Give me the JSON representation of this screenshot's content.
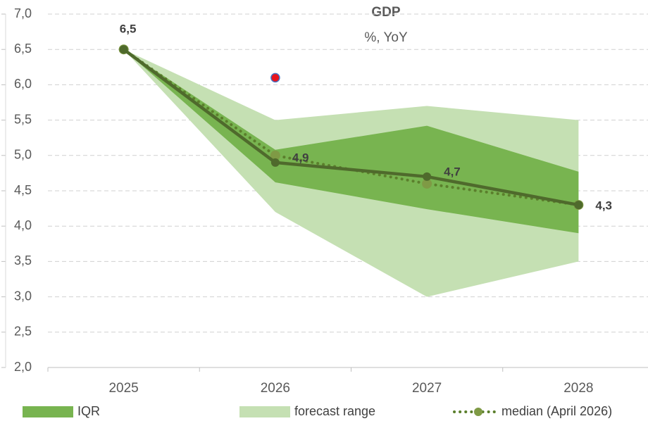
{
  "chart_data": {
    "type": "line",
    "title": "GDP",
    "subtitle": "%, YoY",
    "categories": [
      "2025",
      "2026",
      "2027",
      "2028"
    ],
    "ylim": [
      2.0,
      7.0
    ],
    "yticks": [
      {
        "value": 2.0,
        "label": "2,0"
      },
      {
        "value": 2.5,
        "label": "2,5"
      },
      {
        "value": 3.0,
        "label": "3,0"
      },
      {
        "value": 3.5,
        "label": "3,5"
      },
      {
        "value": 4.0,
        "label": "4,0"
      },
      {
        "value": 4.5,
        "label": "4,5"
      },
      {
        "value": 5.0,
        "label": "5,0"
      },
      {
        "value": 5.5,
        "label": "5,5"
      },
      {
        "value": 6.0,
        "label": "6,0"
      },
      {
        "value": 6.5,
        "label": "6,5"
      },
      {
        "value": 7.0,
        "label": "7,0"
      }
    ],
    "grid": true,
    "legend": "bottom",
    "series": [
      {
        "name": "forecast range",
        "kind": "band",
        "color": "#c5e0b3",
        "lower": [
          6.5,
          4.2,
          3.0,
          3.5
        ],
        "upper": [
          6.5,
          5.5,
          5.7,
          5.5
        ]
      },
      {
        "name": "IQR",
        "kind": "band",
        "color": "#78b450",
        "lower": [
          6.5,
          4.62,
          4.24,
          3.9
        ],
        "upper": [
          6.5,
          5.08,
          5.42,
          4.77
        ]
      },
      {
        "name": "median (April 2026)",
        "kind": "dotted",
        "color": "#5b7f2c",
        "values": [
          6.5,
          5.0,
          4.6,
          4.3
        ]
      },
      {
        "kind": "solid",
        "color": "#4f6a2c",
        "values": [
          6.5,
          4.9,
          4.7,
          4.3
        ],
        "value_labels": [
          "6,5",
          "4,9",
          "4,7",
          "4,3"
        ]
      },
      {
        "kind": "point",
        "color": "#e8141c",
        "values": [
          null,
          6.1,
          null,
          null
        ]
      }
    ]
  }
}
